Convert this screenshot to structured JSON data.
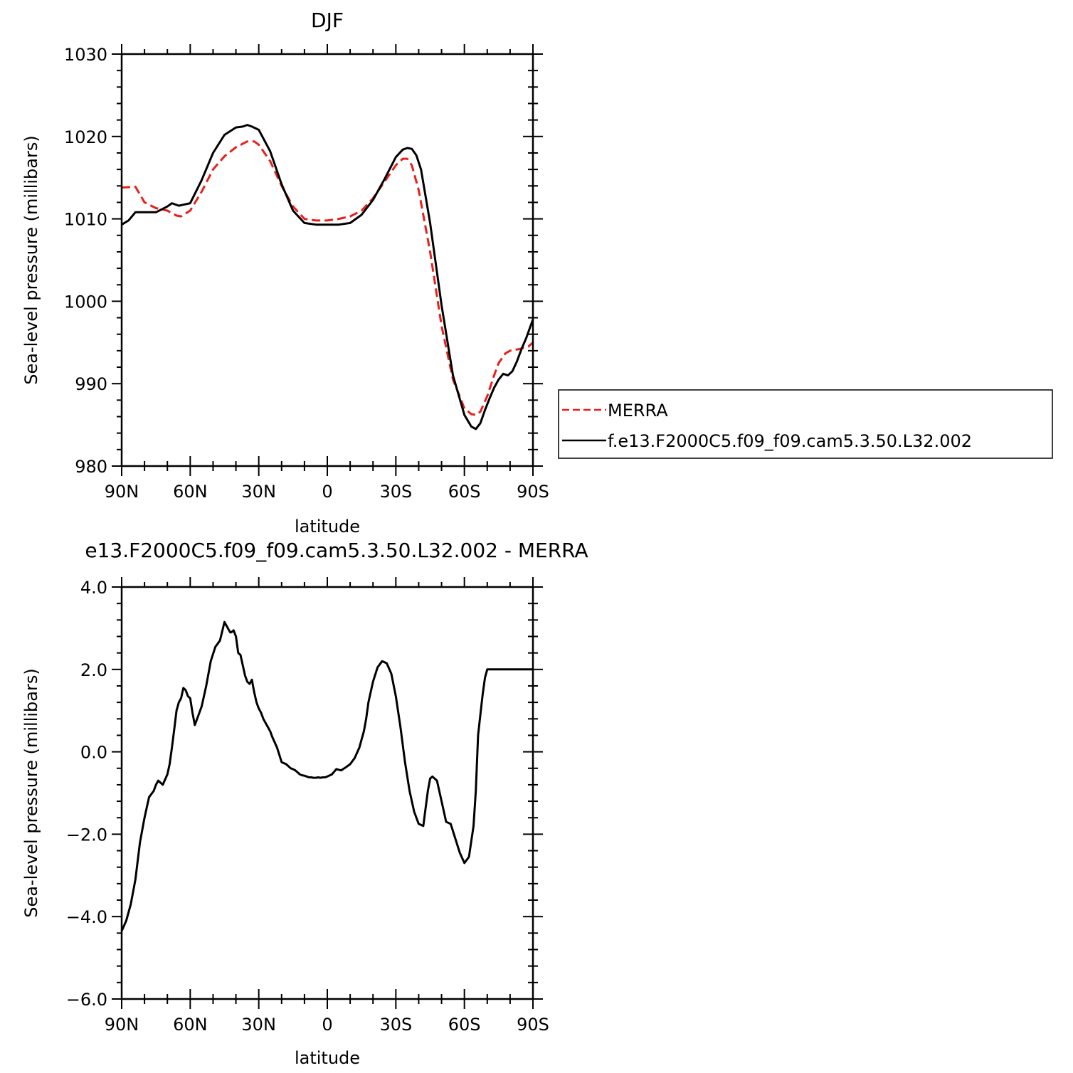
{
  "chart_data": [
    {
      "type": "line",
      "title": "DJF",
      "xlabel": "latitude",
      "ylabel": "Sea-level pressure (millibars)",
      "xlim": [
        90,
        -90
      ],
      "ylim": [
        980,
        1030
      ],
      "x_ticks": [
        90,
        60,
        30,
        0,
        -30,
        -60,
        -90
      ],
      "x_tick_labels": [
        "90N",
        "60N",
        "30N",
        "0",
        "30S",
        "60S",
        "90S"
      ],
      "y_ticks": [
        980,
        990,
        1000,
        1010,
        1020,
        1030
      ],
      "y_tick_labels": [
        "980",
        "990",
        "1000",
        "1010",
        "1020",
        "1030"
      ],
      "grid": false,
      "legend_position": "right",
      "series": [
        {
          "name": "MERRA",
          "color": "#e8201c",
          "dash": "dashed",
          "x": [
            90,
            84,
            80,
            75,
            70,
            66,
            64,
            60,
            55,
            50,
            45,
            40,
            35,
            32,
            30,
            25,
            20,
            15,
            10,
            5,
            0,
            -5,
            -10,
            -15,
            -20,
            -25,
            -30,
            -33,
            -35,
            -37,
            -40,
            -45,
            -50,
            -55,
            -60,
            -63,
            -65,
            -67,
            -70,
            -73,
            -75,
            -78,
            -80,
            -84,
            -88,
            -90
          ],
          "y": [
            1013.8,
            1013.9,
            1012,
            1011.3,
            1011,
            1010.4,
            1010.3,
            1011,
            1013.3,
            1016,
            1017.6,
            1018.7,
            1019.4,
            1019.4,
            1019,
            1017,
            1014,
            1011.5,
            1010,
            1009.8,
            1009.8,
            1010,
            1010.3,
            1011,
            1012.5,
            1014.5,
            1016.5,
            1017.3,
            1017.3,
            1016.5,
            1013.5,
            1006,
            997,
            990.5,
            987,
            986.3,
            986.2,
            986.6,
            988.5,
            991,
            992.5,
            993.7,
            994,
            994.2,
            994.5,
            995
          ]
        },
        {
          "name": "f.e13.F2000C5.f09_f09.cam5.3.50.L32.002",
          "color": "#000000",
          "dash": "solid",
          "x": [
            90,
            87,
            84,
            80,
            75,
            70,
            68,
            65,
            60,
            55,
            50,
            45,
            40,
            37,
            35,
            33,
            30,
            25,
            20,
            15,
            10,
            5,
            0,
            -5,
            -10,
            -15,
            -20,
            -25,
            -30,
            -33,
            -35,
            -37,
            -39,
            -41,
            -45,
            -50,
            -55,
            -60,
            -63,
            -65,
            -67,
            -69,
            -71,
            -73,
            -75,
            -77,
            -79,
            -81,
            -83,
            -85,
            -87,
            -90
          ],
          "y": [
            1009.3,
            1009.8,
            1010.8,
            1010.8,
            1010.8,
            1011.5,
            1011.9,
            1011.6,
            1011.9,
            1014.7,
            1018,
            1020.2,
            1021.1,
            1021.2,
            1021.4,
            1021.2,
            1020.8,
            1018.2,
            1014.2,
            1011,
            1009.5,
            1009.3,
            1009.3,
            1009.3,
            1009.5,
            1010.5,
            1012.3,
            1014.8,
            1017.5,
            1018.4,
            1018.6,
            1018.5,
            1017.7,
            1016,
            1009.5,
            999.5,
            991,
            986.2,
            984.8,
            984.5,
            985.2,
            986.8,
            988.2,
            989.5,
            990.5,
            991.2,
            991,
            991.5,
            992.7,
            994.2,
            995.5,
            997.8
          ]
        }
      ]
    },
    {
      "type": "line",
      "title": "e13.F2000C5.f09_f09.cam5.3.50.L32.002 - MERRA",
      "xlabel": "latitude",
      "ylabel": "Sea-level pressure (millibars)",
      "xlim": [
        90,
        -90
      ],
      "ylim": [
        -6,
        4
      ],
      "x_ticks": [
        90,
        60,
        30,
        0,
        -30,
        -60,
        -90
      ],
      "x_tick_labels": [
        "90N",
        "60N",
        "30N",
        "0",
        "30S",
        "60S",
        "90S"
      ],
      "y_ticks": [
        -6,
        -4,
        -2,
        0,
        2,
        4
      ],
      "y_tick_labels": [
        "−6.0",
        "−4.0",
        "−2.0",
        "0.0",
        "2.0",
        "4.0"
      ],
      "grid": false,
      "series": [
        {
          "color": "#000000",
          "dash": "solid",
          "x": [
            90,
            88,
            86,
            84,
            82,
            80,
            78,
            76,
            75,
            74,
            72,
            70,
            69,
            68,
            67,
            66,
            65,
            64,
            63,
            62,
            61,
            60,
            59,
            58,
            57,
            56,
            55,
            53,
            51,
            49,
            47,
            45,
            44,
            43,
            42.5,
            42,
            41,
            40,
            39.5,
            39,
            38,
            37,
            36,
            35,
            34,
            33,
            32,
            31,
            30,
            29,
            28,
            27,
            26,
            25,
            24,
            22,
            20,
            18,
            17,
            16,
            15,
            14,
            13,
            12,
            11,
            10,
            9,
            8,
            7,
            6,
            5,
            4,
            3,
            2,
            1,
            0,
            -2,
            -4,
            -6,
            -8,
            -10,
            -12,
            -14,
            -15,
            -16,
            -17,
            -18,
            -20,
            -22,
            -24,
            -26,
            -28,
            -30,
            -32,
            -34,
            -36,
            -38,
            -40,
            -42,
            -44,
            -45,
            -46,
            -48,
            -50,
            -52,
            -54,
            -56,
            -58,
            -60,
            -62,
            -64,
            -65,
            -66,
            -67,
            -68,
            -69,
            -70,
            -71,
            -72,
            -73,
            -74,
            -75,
            -76,
            -77,
            -78,
            -79,
            -80,
            -81,
            -82,
            -83,
            -84,
            -85,
            -86,
            -87,
            -88,
            -89,
            -90
          ],
          "y": [
            -4.35,
            -4.1,
            -3.7,
            -3.1,
            -2.2,
            -1.6,
            -1.1,
            -0.95,
            -0.8,
            -0.7,
            -0.8,
            -0.55,
            -0.3,
            0.1,
            0.55,
            1.0,
            1.2,
            1.3,
            1.55,
            1.5,
            1.35,
            1.3,
            0.95,
            0.65,
            0.8,
            0.95,
            1.1,
            1.6,
            2.2,
            2.55,
            2.7,
            3.15,
            3.05,
            2.95,
            2.9,
            2.9,
            2.95,
            2.8,
            2.6,
            2.4,
            2.35,
            2.1,
            1.85,
            1.7,
            1.65,
            1.75,
            1.45,
            1.2,
            1.05,
            0.95,
            0.8,
            0.7,
            0.6,
            0.5,
            0.35,
            0.1,
            -0.25,
            -0.3,
            -0.35,
            -0.4,
            -0.42,
            -0.45,
            -0.5,
            -0.55,
            -0.57,
            -0.58,
            -0.6,
            -0.62,
            -0.62,
            -0.63,
            -0.63,
            -0.62,
            -0.63,
            -0.62,
            -0.62,
            -0.6,
            -0.55,
            -0.42,
            -0.45,
            -0.38,
            -0.3,
            -0.15,
            0.1,
            0.3,
            0.5,
            0.8,
            1.2,
            1.7,
            2.05,
            2.2,
            2.15,
            1.9,
            1.35,
            0.6,
            -0.25,
            -0.95,
            -1.45,
            -1.75,
            -1.8,
            -0.95,
            -0.65,
            -0.6,
            -0.7,
            -1.2,
            -1.7,
            -1.75,
            -2.1,
            -2.45,
            -2.7,
            -2.55,
            -1.8,
            -0.95,
            0.4,
            0.9,
            1.4,
            1.8,
            2.0,
            2.0,
            2.0,
            2.0,
            2.0,
            2.0,
            2.0,
            2.0,
            2.0,
            2.0,
            2.0,
            2.0,
            2.0,
            2.0,
            2.0,
            2.0,
            2.0,
            2.0,
            2.0,
            2.0,
            2.0
          ]
        }
      ]
    }
  ]
}
